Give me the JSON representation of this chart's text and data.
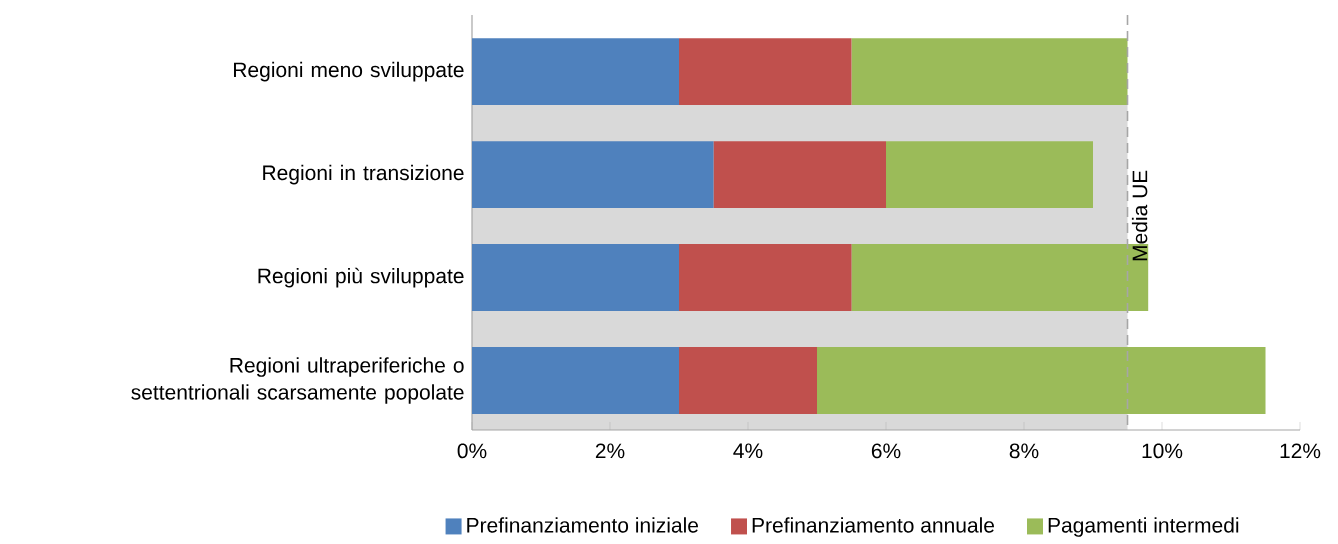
{
  "chart_data": {
    "type": "bar",
    "orientation": "horizontal",
    "stacked": true,
    "categories": [
      "Regioni meno sviluppate",
      "Regioni in transizione",
      "Regioni più sviluppate",
      "Regioni ultraperiferiche o settentrionali scarsamente popolate"
    ],
    "series": [
      {
        "name": "Prefinanziamento iniziale",
        "color": "#4f81bd",
        "values": [
          3,
          3.5,
          3,
          3
        ]
      },
      {
        "name": "Prefinanziamento annuale",
        "color": "#c0504d",
        "values": [
          2.5,
          2.5,
          2.5,
          2
        ]
      },
      {
        "name": "Pagamenti intermedi",
        "color": "#9bbb59",
        "values": [
          4,
          3,
          4.3,
          6.5
        ]
      }
    ],
    "xlim": [
      0,
      12
    ],
    "xticks": [
      {
        "value": 0,
        "label": "0%"
      },
      {
        "value": 2,
        "label": "2%"
      },
      {
        "value": 4,
        "label": "4%"
      },
      {
        "value": 6,
        "label": "6%"
      },
      {
        "value": 8,
        "label": "8%"
      },
      {
        "value": 10,
        "label": "10%"
      },
      {
        "value": 12,
        "label": "12%"
      }
    ],
    "bands": [
      {
        "axis": "x",
        "from": 0,
        "to": 9.5,
        "color": "#d9d9d9"
      }
    ],
    "ref_lines": [
      {
        "axis": "x",
        "value": 9.5,
        "label": "Media UE",
        "color": "#a6a6a6",
        "line_style": "dashed"
      }
    ],
    "legend": "bottom"
  }
}
